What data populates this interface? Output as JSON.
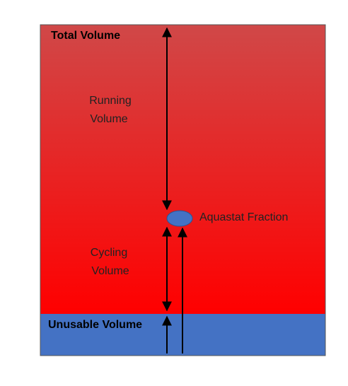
{
  "labels": {
    "total_volume": "Total Volume",
    "running_volume": [
      "Running",
      "Volume"
    ],
    "aquastat_fraction": "Aquastat Fraction",
    "cycling_volume": [
      "Cycling",
      "Volume"
    ],
    "unusable_volume": "Unusable Volume"
  }
}
